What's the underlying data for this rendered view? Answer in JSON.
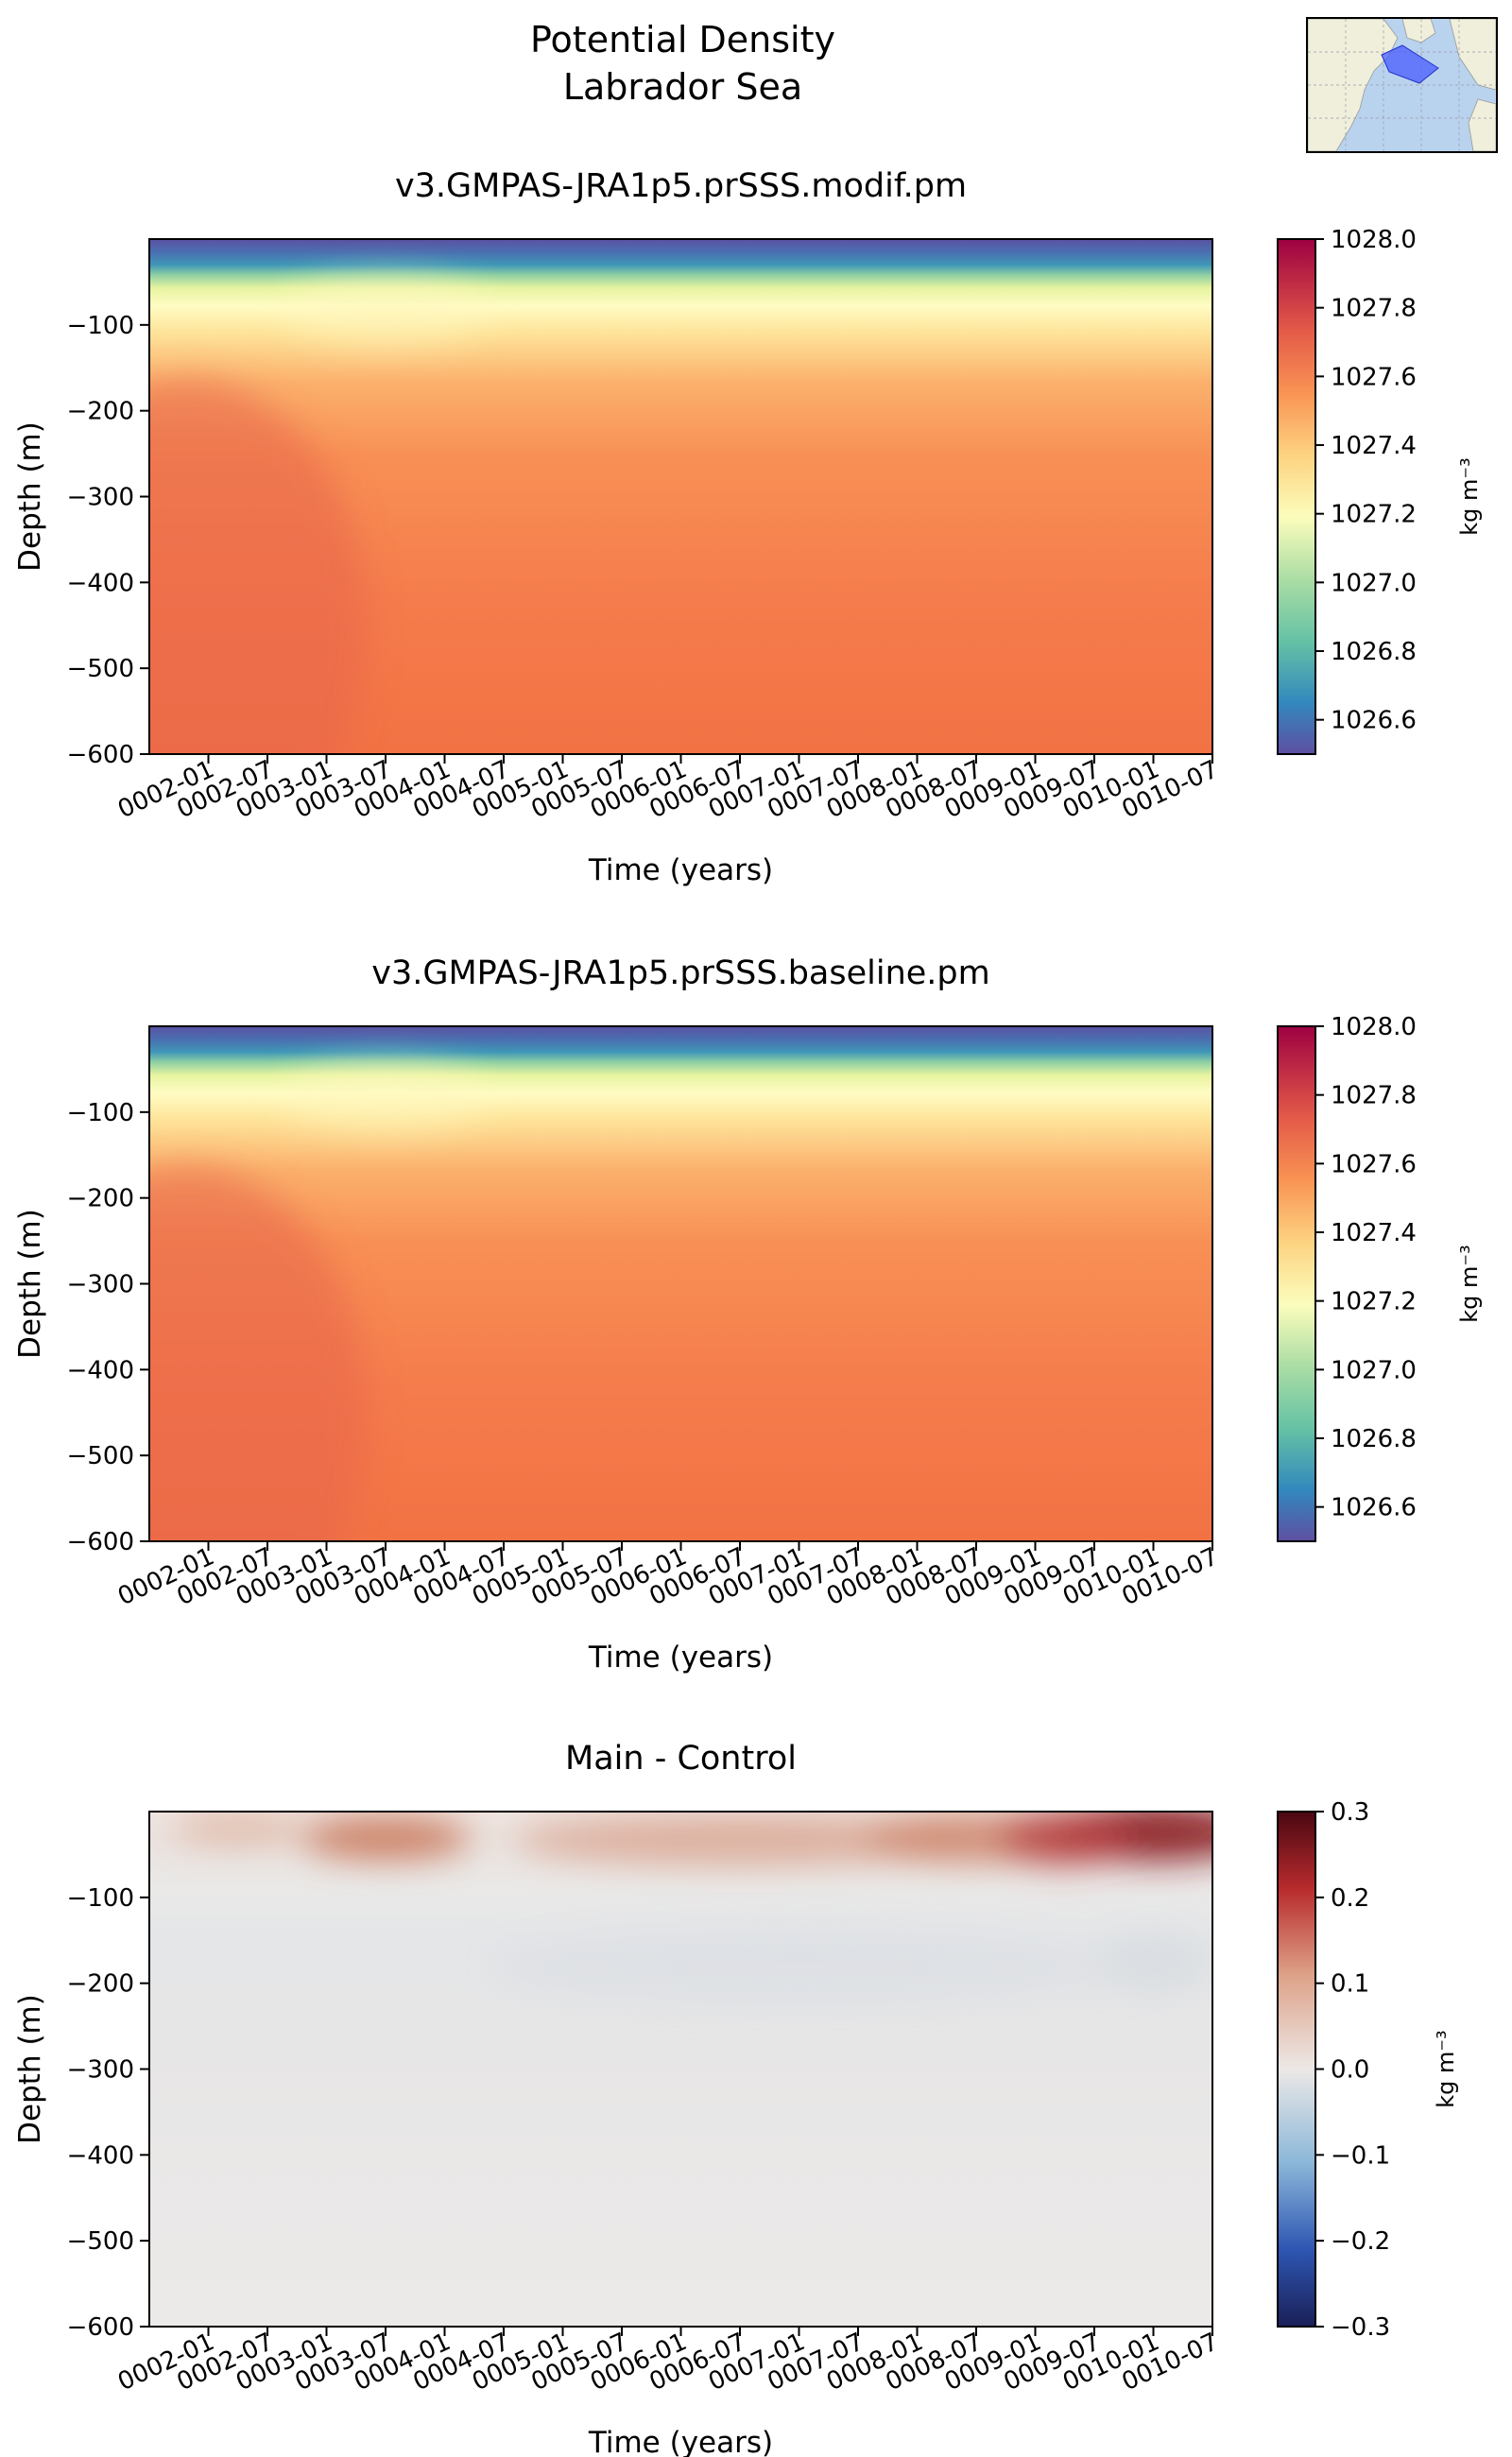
{
  "figure": {
    "suptitle_line1": "Potential Density",
    "suptitle_line2": "Labrador Sea",
    "region_map_icon": "labrador-sea-region-map"
  },
  "chart_data": [
    {
      "type": "heatmap",
      "title": "v3.GMPAS-JRA1p5.prSSS.modif.pm",
      "xlabel": "Time (years)",
      "ylabel": "Depth (m)",
      "x_ticks": [
        "0002-01",
        "0002-07",
        "0003-01",
        "0003-07",
        "0004-01",
        "0004-07",
        "0005-01",
        "0005-07",
        "0006-01",
        "0006-07",
        "0007-01",
        "0007-07",
        "0008-01",
        "0008-07",
        "0009-01",
        "0009-07",
        "0010-01",
        "0010-07"
      ],
      "y_ticks": [
        -100,
        -200,
        -300,
        -400,
        -500,
        -600
      ],
      "ylim": [
        -600,
        0
      ],
      "xlim": [
        "0001-07",
        "0010-07"
      ],
      "colorbar": {
        "label": "kg m⁻³",
        "colormap": "Spectral_r",
        "range": [
          1026.5,
          1028.0
        ],
        "ticks": [
          "1028.0",
          "1027.8",
          "1027.6",
          "1027.4",
          "1027.2",
          "1027.0",
          "1026.8",
          "1026.6"
        ]
      }
    },
    {
      "type": "heatmap",
      "title": "v3.GMPAS-JRA1p5.prSSS.baseline.pm",
      "xlabel": "Time (years)",
      "ylabel": "Depth (m)",
      "x_ticks": [
        "0002-01",
        "0002-07",
        "0003-01",
        "0003-07",
        "0004-01",
        "0004-07",
        "0005-01",
        "0005-07",
        "0006-01",
        "0006-07",
        "0007-01",
        "0007-07",
        "0008-01",
        "0008-07",
        "0009-01",
        "0009-07",
        "0010-01",
        "0010-07"
      ],
      "y_ticks": [
        -100,
        -200,
        -300,
        -400,
        -500,
        -600
      ],
      "ylim": [
        -600,
        0
      ],
      "xlim": [
        "0001-07",
        "0010-07"
      ],
      "colorbar": {
        "label": "kg m⁻³",
        "colormap": "Spectral_r",
        "range": [
          1026.5,
          1028.0
        ],
        "ticks": [
          "1028.0",
          "1027.8",
          "1027.6",
          "1027.4",
          "1027.2",
          "1027.0",
          "1026.8",
          "1026.6"
        ]
      }
    },
    {
      "type": "heatmap",
      "title": "Main - Control",
      "xlabel": "Time (years)",
      "ylabel": "Depth (m)",
      "x_ticks": [
        "0002-01",
        "0002-07",
        "0003-01",
        "0003-07",
        "0004-01",
        "0004-07",
        "0005-01",
        "0005-07",
        "0006-01",
        "0006-07",
        "0007-01",
        "0007-07",
        "0008-01",
        "0008-07",
        "0009-01",
        "0009-07",
        "0010-01",
        "0010-07"
      ],
      "y_ticks": [
        -100,
        -200,
        -300,
        -400,
        -500,
        -600
      ],
      "ylim": [
        -600,
        0
      ],
      "xlim": [
        "0001-07",
        "0010-07"
      ],
      "colorbar": {
        "label": "kg m⁻³",
        "colormap": "RdBu_r",
        "range": [
          -0.3,
          0.3
        ],
        "ticks": [
          "0.3",
          "0.2",
          "0.1",
          "0.0",
          "−0.1",
          "−0.2",
          "−0.3"
        ]
      }
    }
  ]
}
